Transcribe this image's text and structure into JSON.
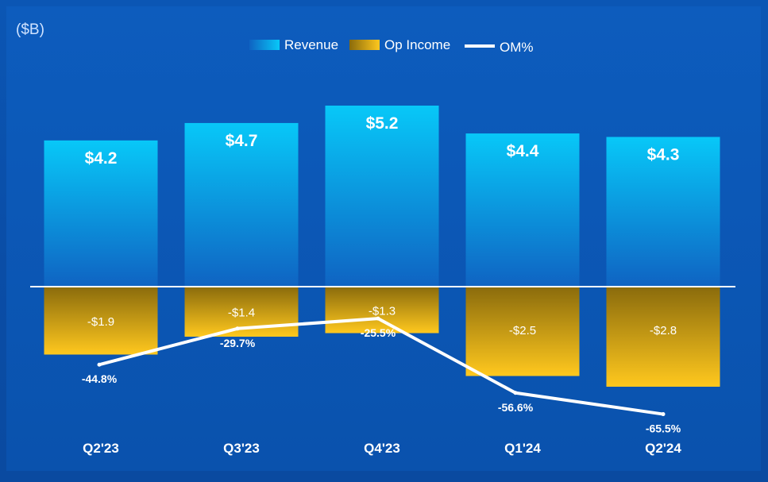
{
  "unit_label": "($B)",
  "colors": {
    "revenue_top": "#08c8f8",
    "revenue_bottom": "#0f63c2",
    "opincome_top": "#8a6b0c",
    "opincome_bottom": "#ffc81e",
    "line": "#ffffff",
    "text": "#ffffff"
  },
  "chart_data": {
    "type": "bar",
    "unit": "($B)",
    "categories": [
      "Q2'23",
      "Q3'23",
      "Q4'23",
      "Q1'24",
      "Q2'24"
    ],
    "series": [
      {
        "name": "Revenue",
        "type": "bar",
        "values": [
          4.2,
          4.7,
          5.2,
          4.4,
          4.3
        ],
        "labels": [
          "$4.2",
          "$4.7",
          "$5.2",
          "$4.4",
          "$4.3"
        ]
      },
      {
        "name": "Op Income",
        "type": "bar",
        "values": [
          -1.9,
          -1.4,
          -1.3,
          -2.5,
          -2.8
        ],
        "labels": [
          "-$1.9",
          "-$1.4",
          "-$1.3",
          "-$2.5",
          "-$2.8"
        ]
      },
      {
        "name": "OM%",
        "type": "line",
        "values": [
          -44.8,
          -29.7,
          -25.5,
          -56.6,
          -65.5
        ],
        "labels": [
          "-44.8%",
          "-29.7%",
          "-25.5%",
          "-56.6%",
          "-65.5%"
        ]
      }
    ],
    "legend": [
      "Revenue",
      "Op Income",
      "OM%"
    ],
    "legend_position": "top-center"
  }
}
